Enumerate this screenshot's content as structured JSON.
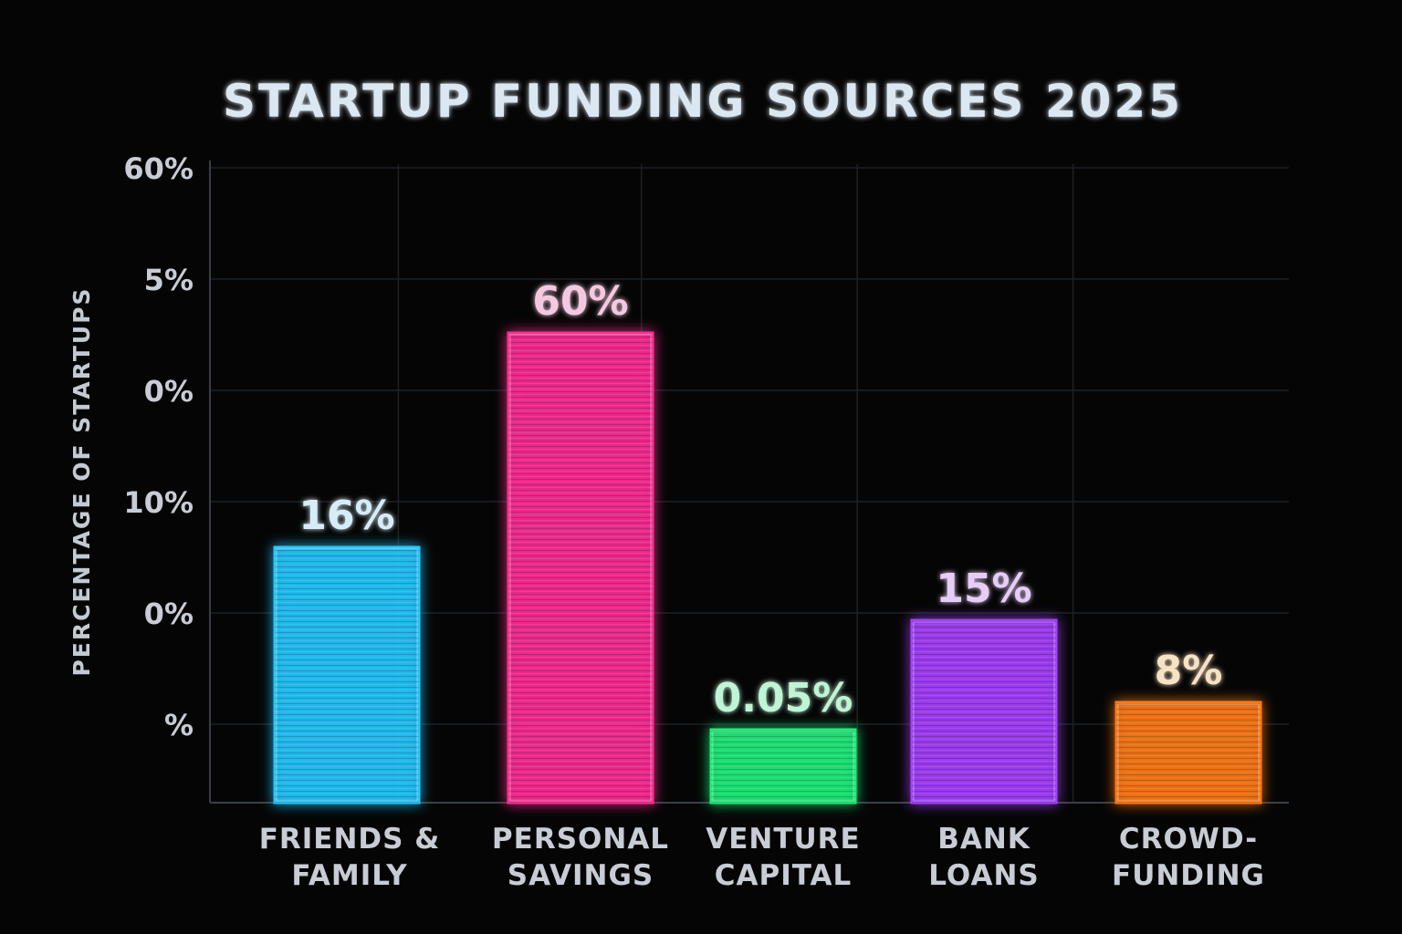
{
  "chart_data": {
    "type": "bar",
    "title": "STARTUP FUNDING SOURCES 2025",
    "ylabel": "PERCENTAGE OF STARTUPS",
    "xlabel": "",
    "y_tick_labels": [
      "60%",
      "5%",
      "0%",
      "10%",
      "0%",
      "%"
    ],
    "ylim": [
      0,
      70
    ],
    "grid": true,
    "categories": [
      [
        "FRIENDS &",
        "FAMILY"
      ],
      [
        "PERSONAL",
        "SAVINGS"
      ],
      [
        "VENTURE",
        "CAPITAL"
      ],
      [
        "BANK",
        "LOANS"
      ],
      [
        "CROWD-",
        "FUNDING"
      ]
    ],
    "values": [
      16,
      60,
      0.05,
      15,
      8
    ],
    "shown_bar_levels": [
      28,
      51.5,
      8,
      20,
      11
    ],
    "value_labels": [
      "16%",
      "60%",
      "0.05%",
      "15%",
      "8%"
    ],
    "colors": [
      "#22c8ff",
      "#ff2d95",
      "#1ff07a",
      "#a640ff",
      "#ff7a14"
    ],
    "value_label_colors": [
      "#d6ecf6",
      "#f4c9e0",
      "#bff4d6",
      "#e6cdf6",
      "#f8e2c4"
    ],
    "background": "#050505",
    "grid_color": "#1d2126"
  }
}
